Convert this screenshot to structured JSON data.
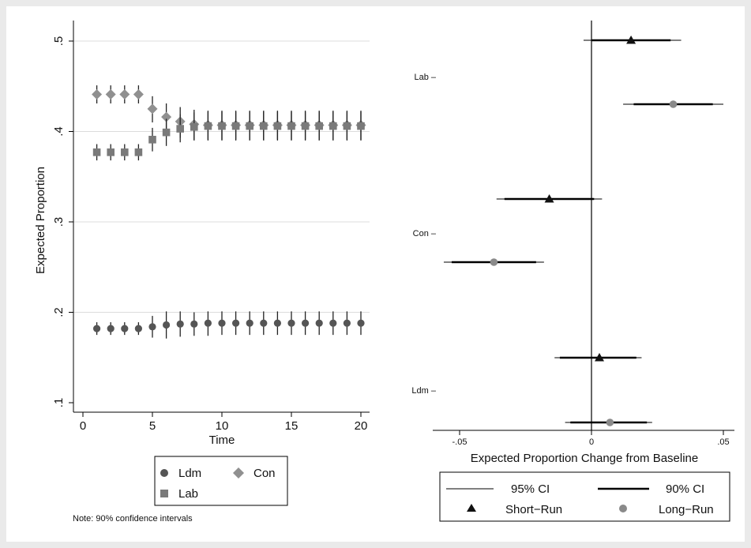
{
  "chart_data": [
    {
      "type": "scatter",
      "xlabel": "Time",
      "ylabel": "Expected Proportion",
      "xlim": [
        0,
        20
      ],
      "ylim": [
        0.1,
        0.5
      ],
      "xticks": [
        "0",
        "5",
        "10",
        "15",
        "20"
      ],
      "yticks": [
        ".1",
        ".2",
        ".3",
        ".4",
        ".5"
      ],
      "ytick_values": [
        0.1,
        0.2,
        0.3,
        0.4,
        0.5
      ],
      "grid": true,
      "legend_position": "bottom",
      "note": "Note: 90% confidence intervals",
      "x": [
        1,
        2,
        3,
        4,
        5,
        6,
        7,
        8,
        9,
        10,
        11,
        12,
        13,
        14,
        15,
        16,
        17,
        18,
        19,
        20
      ],
      "series": [
        {
          "name": "Ldm",
          "marker": "circle",
          "color": "#555555",
          "values": [
            0.182,
            0.182,
            0.182,
            0.182,
            0.184,
            0.186,
            0.187,
            0.187,
            0.188,
            0.188,
            0.188,
            0.188,
            0.188,
            0.188,
            0.188,
            0.188,
            0.188,
            0.188,
            0.188,
            0.188
          ],
          "ci_low": [
            0.175,
            0.175,
            0.175,
            0.175,
            0.172,
            0.171,
            0.173,
            0.174,
            0.174,
            0.175,
            0.175,
            0.175,
            0.175,
            0.175,
            0.175,
            0.175,
            0.175,
            0.175,
            0.175,
            0.175
          ],
          "ci_high": [
            0.189,
            0.189,
            0.189,
            0.189,
            0.196,
            0.201,
            0.201,
            0.2,
            0.201,
            0.201,
            0.201,
            0.201,
            0.201,
            0.201,
            0.201,
            0.201,
            0.201,
            0.201,
            0.201,
            0.201
          ]
        },
        {
          "name": "Con",
          "marker": "diamond",
          "color": "#909090",
          "values": [
            0.441,
            0.441,
            0.441,
            0.441,
            0.425,
            0.416,
            0.411,
            0.408,
            0.407,
            0.407,
            0.407,
            0.407,
            0.407,
            0.407,
            0.407,
            0.407,
            0.407,
            0.407,
            0.407,
            0.407
          ],
          "ci_low": [
            0.431,
            0.431,
            0.431,
            0.431,
            0.41,
            0.398,
            0.393,
            0.391,
            0.391,
            0.391,
            0.391,
            0.391,
            0.391,
            0.391,
            0.391,
            0.391,
            0.391,
            0.391,
            0.391,
            0.391
          ],
          "ci_high": [
            0.451,
            0.451,
            0.451,
            0.451,
            0.439,
            0.431,
            0.427,
            0.424,
            0.423,
            0.423,
            0.423,
            0.423,
            0.423,
            0.423,
            0.423,
            0.423,
            0.423,
            0.423,
            0.423,
            0.423
          ]
        },
        {
          "name": "Lab",
          "marker": "square",
          "color": "#7a7a7a",
          "values": [
            0.377,
            0.377,
            0.377,
            0.377,
            0.391,
            0.399,
            0.403,
            0.405,
            0.406,
            0.406,
            0.406,
            0.406,
            0.406,
            0.406,
            0.406,
            0.406,
            0.406,
            0.406,
            0.406,
            0.406
          ],
          "ci_low": [
            0.368,
            0.368,
            0.368,
            0.368,
            0.378,
            0.384,
            0.388,
            0.39,
            0.39,
            0.39,
            0.39,
            0.39,
            0.39,
            0.39,
            0.39,
            0.39,
            0.39,
            0.39,
            0.39,
            0.39
          ],
          "ci_high": [
            0.386,
            0.386,
            0.386,
            0.386,
            0.404,
            0.414,
            0.419,
            0.421,
            0.422,
            0.422,
            0.422,
            0.422,
            0.422,
            0.422,
            0.422,
            0.422,
            0.422,
            0.422,
            0.422,
            0.422
          ]
        }
      ]
    },
    {
      "type": "scatter",
      "xlabel": "Expected Proportion Change from Baseline",
      "xlim": [
        -0.055,
        0.05
      ],
      "xticks": [
        "-.05",
        "0",
        ".05"
      ],
      "xtick_values": [
        -0.05,
        0,
        0.05
      ],
      "categories": [
        "Lab",
        "Con",
        "Ldm"
      ],
      "reference_line": 0,
      "legend_position": "bottom",
      "legend": [
        {
          "label": "95% CI"
        },
        {
          "label": "90% CI"
        },
        {
          "label": "Short−Run"
        },
        {
          "label": "Long−Run"
        }
      ],
      "series": [
        {
          "name": "Short−Run",
          "marker": "triangle",
          "color": "#111111",
          "values": [
            0.015,
            -0.016,
            0.003
          ],
          "ci90_low": [
            0.0,
            -0.033,
            -0.012
          ],
          "ci90_high": [
            0.03,
            0.001,
            0.017
          ],
          "ci95_low": [
            -0.003,
            -0.036,
            -0.014
          ],
          "ci95_high": [
            0.034,
            0.004,
            0.019
          ]
        },
        {
          "name": "Long−Run",
          "marker": "circle",
          "color": "#8a8a8a",
          "values": [
            0.031,
            -0.037,
            0.007
          ],
          "ci90_low": [
            0.016,
            -0.053,
            -0.008
          ],
          "ci90_high": [
            0.046,
            -0.021,
            0.021
          ],
          "ci95_low": [
            0.012,
            -0.056,
            -0.01
          ],
          "ci95_high": [
            0.05,
            -0.018,
            0.023
          ]
        }
      ]
    }
  ]
}
